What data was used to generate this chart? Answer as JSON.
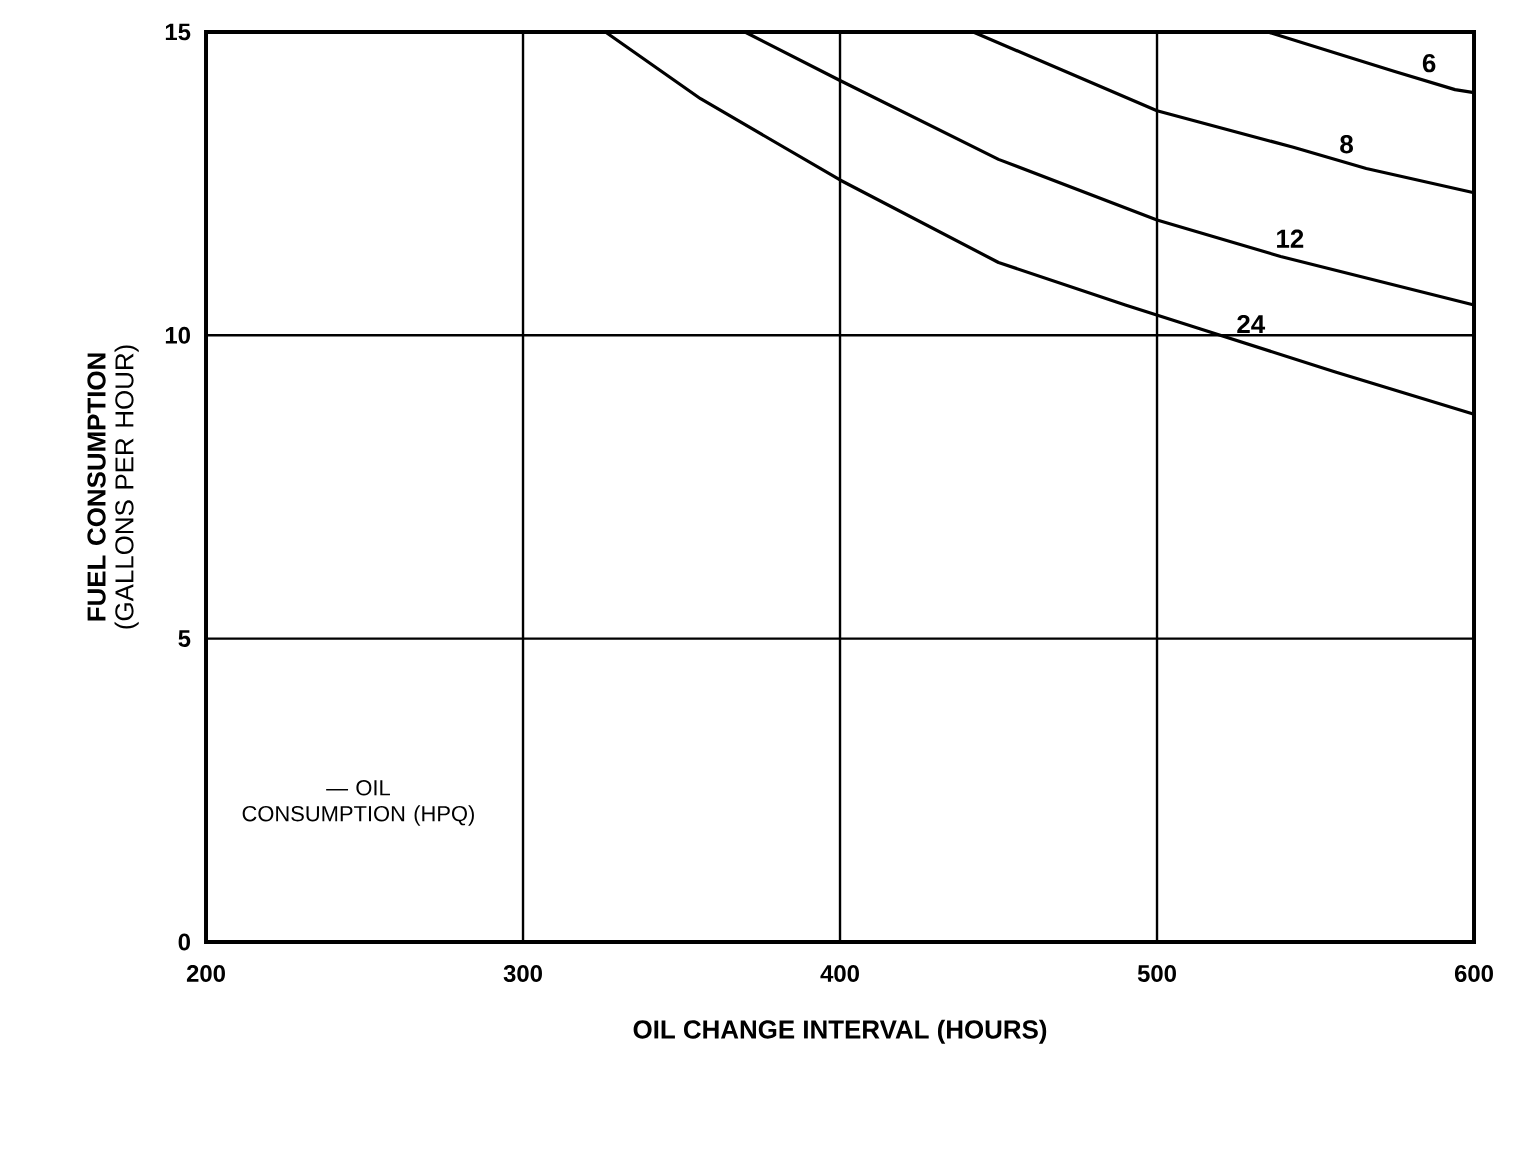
{
  "chart_data": {
    "type": "line",
    "xlabel": "OIL CHANGE INTERVAL (HOURS)",
    "ylabel": "**FUEL CONSUMPTION** (GALLONS PER HOUR)",
    "annotations": [
      "— OIL CONSUMPTION (HPQ)"
    ],
    "xlim": [
      200,
      600
    ],
    "xticks": [
      200,
      300,
      400,
      500,
      600
    ],
    "ylim": [
      0,
      15
    ],
    "yticks": [
      0,
      5,
      10,
      15
    ],
    "grid": true,
    "marker": "none",
    "line_style": "solid",
    "series": [
      {
        "name": "6",
        "color": "#000000",
        "x": [
          535,
          575,
          594,
          600
        ],
        "values": [
          15,
          14.35,
          14.05,
          14.0
        ]
      },
      {
        "name": "8",
        "color": "#000000",
        "x": [
          442,
          500,
          543,
          566,
          600
        ],
        "values": [
          15,
          13.7,
          13.1,
          12.75,
          12.35
        ]
      },
      {
        "name": "12",
        "color": "#000000",
        "x": [
          370,
          400,
          450,
          500,
          539,
          600
        ],
        "values": [
          15,
          14.2,
          12.9,
          11.9,
          11.3,
          10.5
        ]
      },
      {
        "name": "24",
        "color": "#000000",
        "x": [
          326,
          356,
          400,
          450,
          490,
          514,
          556,
          600
        ],
        "values": [
          15,
          13.9,
          12.56,
          11.2,
          10.5,
          10.1,
          9.4,
          8.7
        ]
      }
    ]
  }
}
